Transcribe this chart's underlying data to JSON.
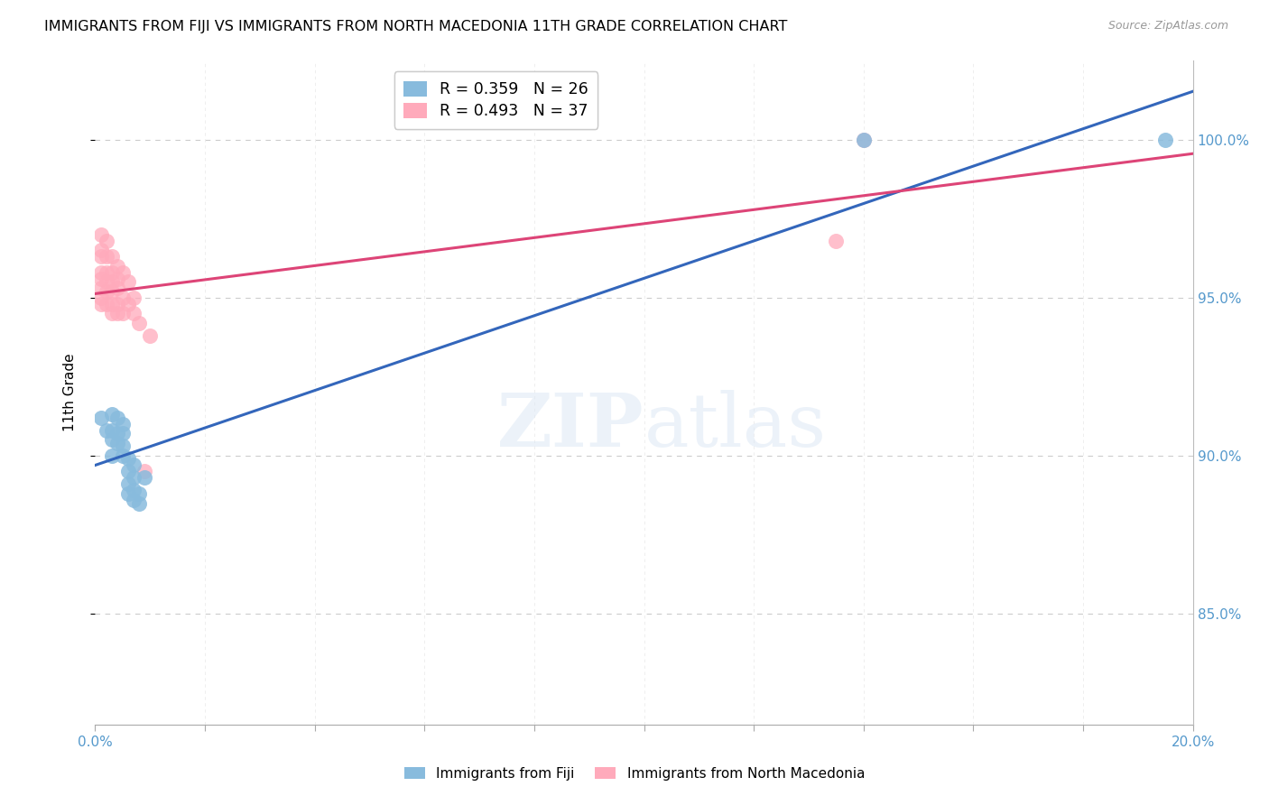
{
  "title": "IMMIGRANTS FROM FIJI VS IMMIGRANTS FROM NORTH MACEDONIA 11TH GRADE CORRELATION CHART",
  "source": "Source: ZipAtlas.com",
  "ylabel": "11th Grade",
  "right_ytick_vals": [
    0.85,
    0.9,
    0.95,
    1.0
  ],
  "right_ytick_labels": [
    "85.0%",
    "90.0%",
    "95.0%",
    "100.0%"
  ],
  "fiji_color": "#88BBDD",
  "fiji_line_color": "#3366BB",
  "macedonia_color": "#FFAABB",
  "macedonia_line_color": "#DD4477",
  "fiji_R": 0.359,
  "fiji_N": 26,
  "macedonia_R": 0.493,
  "macedonia_N": 37,
  "xmin": 0.0,
  "xmax": 0.2,
  "ymin": 0.815,
  "ymax": 1.025,
  "fiji_points_x": [
    0.001,
    0.002,
    0.003,
    0.003,
    0.003,
    0.003,
    0.004,
    0.004,
    0.004,
    0.005,
    0.005,
    0.005,
    0.005,
    0.006,
    0.006,
    0.006,
    0.006,
    0.007,
    0.007,
    0.007,
    0.007,
    0.008,
    0.008,
    0.009,
    0.14,
    0.195
  ],
  "fiji_points_y": [
    0.912,
    0.908,
    0.9,
    0.905,
    0.908,
    0.913,
    0.904,
    0.907,
    0.912,
    0.9,
    0.903,
    0.907,
    0.91,
    0.888,
    0.891,
    0.895,
    0.899,
    0.886,
    0.889,
    0.893,
    0.897,
    0.885,
    0.888,
    0.893,
    1.0,
    1.0
  ],
  "macedonia_points_x": [
    0.001,
    0.001,
    0.001,
    0.001,
    0.001,
    0.001,
    0.001,
    0.001,
    0.002,
    0.002,
    0.002,
    0.002,
    0.002,
    0.002,
    0.003,
    0.003,
    0.003,
    0.003,
    0.003,
    0.003,
    0.004,
    0.004,
    0.004,
    0.004,
    0.004,
    0.005,
    0.005,
    0.005,
    0.006,
    0.006,
    0.007,
    0.007,
    0.008,
    0.009,
    0.01,
    0.135,
    0.14
  ],
  "macedonia_points_y": [
    0.97,
    0.965,
    0.963,
    0.958,
    0.956,
    0.953,
    0.95,
    0.948,
    0.968,
    0.963,
    0.958,
    0.955,
    0.952,
    0.948,
    0.963,
    0.958,
    0.955,
    0.952,
    0.948,
    0.945,
    0.96,
    0.956,
    0.953,
    0.948,
    0.945,
    0.958,
    0.95,
    0.945,
    0.955,
    0.948,
    0.95,
    0.945,
    0.942,
    0.895,
    0.938,
    0.968,
    1.0
  ],
  "grid_x_ticks": [
    0.0,
    0.02,
    0.04,
    0.06,
    0.08,
    0.1,
    0.12,
    0.14,
    0.16,
    0.18,
    0.2
  ]
}
